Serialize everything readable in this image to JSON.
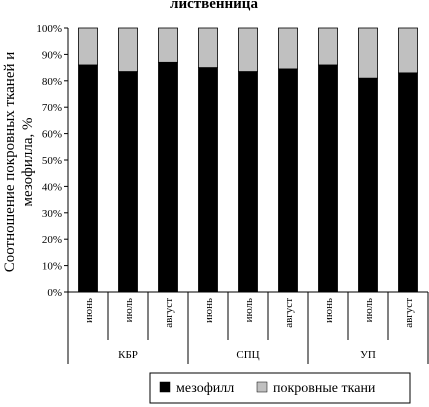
{
  "chart_data": {
    "type": "bar",
    "stacked": true,
    "percent": true,
    "title": "лиственница",
    "ylabel_lines": [
      "Соотношение покровных тканей и",
      "мезофилла, %"
    ],
    "ylim": [
      0,
      100
    ],
    "yticks": [
      "0%",
      "10%",
      "20%",
      "30%",
      "40%",
      "50%",
      "60%",
      "70%",
      "80%",
      "90%",
      "100%"
    ],
    "categories": [
      "июнь",
      "июль",
      "август",
      "июнь",
      "июль",
      "август",
      "июнь",
      "июль",
      "август"
    ],
    "groups": [
      "КБР",
      "СПЦ",
      "УП"
    ],
    "series": [
      {
        "name": "мезофилл",
        "color": "#000000",
        "values": [
          86,
          83.5,
          87,
          85,
          83.5,
          84.5,
          86,
          81,
          83
        ]
      },
      {
        "name": "покровные ткани",
        "color": "#c0c0c0",
        "values": [
          14,
          16.5,
          13,
          15,
          16.5,
          15.5,
          14,
          19,
          17
        ]
      }
    ],
    "legend_position": "bottom",
    "grid": false
  }
}
